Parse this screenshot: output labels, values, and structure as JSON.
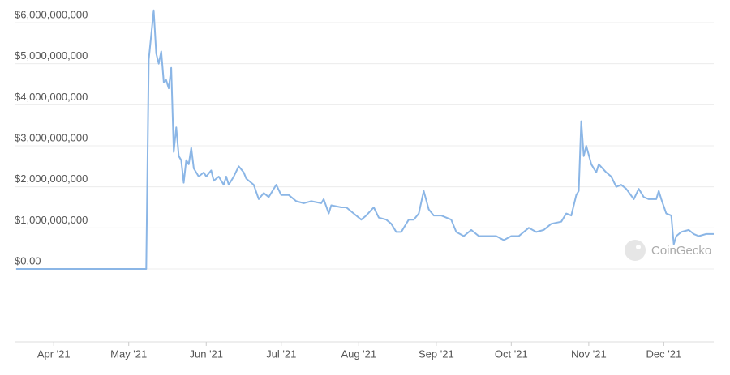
{
  "chart_data": {
    "type": "line",
    "color": "#8bb6e6",
    "grid": true,
    "watermark": "CoinGecko",
    "x": [
      -15,
      37,
      38,
      40,
      41,
      42,
      43,
      44,
      45,
      46,
      47,
      48,
      49,
      50,
      51,
      52,
      53,
      54,
      55,
      56,
      58,
      60,
      61,
      63,
      64,
      66,
      68,
      69,
      70,
      72,
      74,
      76,
      77,
      80,
      82,
      84,
      86,
      89,
      91,
      94,
      97,
      100,
      103,
      107,
      108,
      110,
      111,
      115,
      117,
      120,
      123,
      125,
      128,
      130,
      133,
      135,
      137,
      139,
      142,
      144,
      146,
      148,
      150,
      152,
      155,
      159,
      161,
      164,
      167,
      170,
      173,
      177,
      180,
      183,
      186,
      190,
      193,
      196,
      199,
      203,
      205,
      207,
      209,
      210,
      211,
      212,
      213,
      215,
      217,
      218,
      221,
      223,
      225,
      227,
      229,
      232,
      234,
      236,
      238,
      241,
      242,
      243,
      245,
      247,
      248,
      249,
      251,
      254,
      256,
      258,
      261,
      264
    ],
    "values": [
      0,
      0,
      5100000000,
      6300000000,
      5250000000,
      5000000000,
      5300000000,
      4550000000,
      4600000000,
      4400000000,
      4900000000,
      2850000000,
      3450000000,
      2750000000,
      2650000000,
      2100000000,
      2650000000,
      2550000000,
      2950000000,
      2450000000,
      2250000000,
      2350000000,
      2250000000,
      2400000000,
      2150000000,
      2250000000,
      2050000000,
      2250000000,
      2050000000,
      2250000000,
      2500000000,
      2350000000,
      2200000000,
      2050000000,
      1700000000,
      1850000000,
      1750000000,
      2050000000,
      1800000000,
      1800000000,
      1650000000,
      1600000000,
      1650000000,
      1600000000,
      1700000000,
      1350000000,
      1550000000,
      1500000000,
      1500000000,
      1350000000,
      1200000000,
      1300000000,
      1500000000,
      1250000000,
      1200000000,
      1100000000,
      900000000,
      900000000,
      1200000000,
      1200000000,
      1350000000,
      1900000000,
      1450000000,
      1300000000,
      1300000000,
      1200000000,
      900000000,
      800000000,
      950000000,
      800000000,
      800000000,
      800000000,
      700000000,
      800000000,
      800000000,
      1000000000,
      900000000,
      950000000,
      1100000000,
      1150000000,
      1350000000,
      1300000000,
      1800000000,
      1900000000,
      3600000000,
      2750000000,
      3000000000,
      2550000000,
      2350000000,
      2550000000,
      2350000000,
      2250000000,
      2000000000,
      2050000000,
      1950000000,
      1700000000,
      1950000000,
      1750000000,
      1700000000,
      1700000000,
      1900000000,
      1700000000,
      1350000000,
      1300000000,
      600000000,
      800000000,
      900000000,
      950000000,
      850000000,
      800000000,
      850000000,
      850000000
    ],
    "xlim": [
      -15,
      264
    ],
    "xticks": [
      {
        "value": 0,
        "label": "Apr '21"
      },
      {
        "value": 30,
        "label": "May '21"
      },
      {
        "value": 61,
        "label": "Jun '21"
      },
      {
        "value": 91,
        "label": "Jul '21"
      },
      {
        "value": 122,
        "label": "Aug '21"
      },
      {
        "value": 153,
        "label": "Sep '21"
      },
      {
        "value": 183,
        "label": "Oct '21"
      },
      {
        "value": 214,
        "label": "Nov '21"
      },
      {
        "value": 244,
        "label": "Dec '21"
      }
    ],
    "ylim": [
      0,
      6000000000
    ],
    "yticks": [
      {
        "value": 0,
        "label": "$0.00"
      },
      {
        "value": 1000000000,
        "label": "$1,000,000,000"
      },
      {
        "value": 2000000000,
        "label": "$2,000,000,000"
      },
      {
        "value": 3000000000,
        "label": "$3,000,000,000"
      },
      {
        "value": 4000000000,
        "label": "$4,000,000,000"
      },
      {
        "value": 5000000000,
        "label": "$5,000,000,000"
      },
      {
        "value": 6000000000,
        "label": "$6,000,000,000"
      }
    ]
  }
}
